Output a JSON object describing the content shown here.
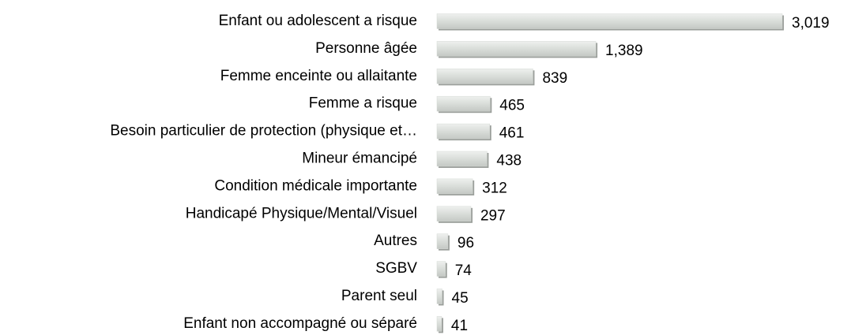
{
  "chart_data": {
    "type": "bar",
    "orientation": "horizontal",
    "categories": [
      "Enfant ou adolescent a risque",
      "Personne âgée",
      "Femme enceinte ou allaitante",
      "Femme a risque",
      "Besoin particulier de protection (physique et…",
      "Mineur émancipé",
      "Condition médicale importante",
      "Handicapé Physique/Mental/Visuel",
      "Autres",
      "SGBV",
      "Parent seul",
      "Enfant non accompagné ou séparé"
    ],
    "values": [
      3019,
      1389,
      839,
      465,
      461,
      438,
      312,
      297,
      96,
      74,
      45,
      41
    ],
    "value_labels": [
      "3,019",
      "1,389",
      "839",
      "465",
      "461",
      "438",
      "312",
      "297",
      "96",
      "74",
      "45",
      "41"
    ],
    "color": "#d6dad6"
  }
}
